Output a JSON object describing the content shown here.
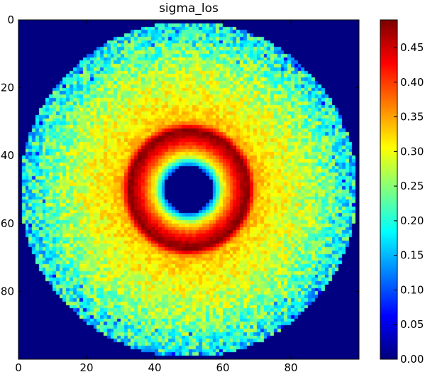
{
  "chart_data": {
    "type": "heatmap",
    "title": "sigma_los",
    "colormap": "jet",
    "grid": false,
    "extent": {
      "x": [
        0,
        100
      ],
      "y": [
        0,
        100
      ]
    },
    "y_axis_inverted": true,
    "xticks": [
      0,
      20,
      40,
      60,
      80
    ],
    "yticks": [
      0,
      20,
      40,
      60,
      80
    ],
    "xtick_labels": [
      "0",
      "20",
      "40",
      "60",
      "80"
    ],
    "ytick_labels": [
      "0",
      "20",
      "40",
      "60",
      "80"
    ],
    "colorbar": {
      "range": [
        0,
        0.49
      ],
      "ticks": [
        0.0,
        0.05,
        0.1,
        0.15,
        0.2,
        0.25,
        0.3,
        0.35,
        0.4,
        0.45
      ],
      "tick_labels": [
        "0.00",
        "0.05",
        "0.10",
        "0.15",
        "0.20",
        "0.25",
        "0.30",
        "0.35",
        "0.40",
        "0.45"
      ],
      "placement": "right"
    },
    "field": {
      "center": [
        49.5,
        49.5
      ],
      "outer_radius": 49.5,
      "hole_radius": 7,
      "background_value": 0.0,
      "radial_profile": [
        {
          "r": 7,
          "value": 0.1
        },
        {
          "r": 10,
          "value": 0.3
        },
        {
          "r": 13,
          "value": 0.4
        },
        {
          "r": 15.5,
          "value": 0.46
        },
        {
          "r": 17.5,
          "value": 0.49
        },
        {
          "r": 20,
          "value": 0.34
        },
        {
          "r": 25,
          "value": 0.31
        },
        {
          "r": 30,
          "value": 0.29
        },
        {
          "r": 35,
          "value": 0.27
        },
        {
          "r": 40,
          "value": 0.24
        },
        {
          "r": 45,
          "value": 0.21
        },
        {
          "r": 49.5,
          "value": 0.18
        }
      ]
    }
  }
}
